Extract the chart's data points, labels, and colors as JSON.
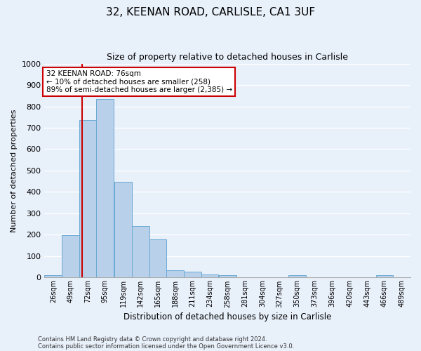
{
  "title": "32, KEENAN ROAD, CARLISLE, CA1 3UF",
  "subtitle": "Size of property relative to detached houses in Carlisle",
  "xlabel": "Distribution of detached houses by size in Carlisle",
  "ylabel": "Number of detached properties",
  "bin_labels": [
    "26sqm",
    "49sqm",
    "72sqm",
    "95sqm",
    "119sqm",
    "142sqm",
    "165sqm",
    "188sqm",
    "211sqm",
    "234sqm",
    "258sqm",
    "281sqm",
    "304sqm",
    "327sqm",
    "350sqm",
    "373sqm",
    "396sqm",
    "420sqm",
    "443sqm",
    "466sqm",
    "489sqm"
  ],
  "bin_edges": [
    26,
    49,
    72,
    95,
    119,
    142,
    165,
    188,
    211,
    234,
    258,
    281,
    304,
    327,
    350,
    373,
    396,
    420,
    443,
    466,
    489
  ],
  "bar_heights": [
    10,
    197,
    737,
    833,
    449,
    240,
    178,
    35,
    27,
    15,
    10,
    0,
    0,
    0,
    10,
    0,
    0,
    0,
    0,
    10
  ],
  "bar_color": "#b8d0ea",
  "bar_edge_color": "#6aaad4",
  "vline_x": 76,
  "vline_color": "#cc0000",
  "annotation_title": "32 KEENAN ROAD: 76sqm",
  "annotation_line1": "← 10% of detached houses are smaller (258)",
  "annotation_line2": "89% of semi-detached houses are larger (2,385) →",
  "annotation_box_facecolor": "white",
  "annotation_box_edgecolor": "#cc0000",
  "ylim": [
    0,
    1000
  ],
  "yticks": [
    0,
    100,
    200,
    300,
    400,
    500,
    600,
    700,
    800,
    900,
    1000
  ],
  "footnote1": "Contains HM Land Registry data © Crown copyright and database right 2024.",
  "footnote2": "Contains public sector information licensed under the Open Government Licence v3.0.",
  "bg_color": "#e8f0fa",
  "plot_bg_color": "#e8f0fa",
  "grid_color": "white"
}
